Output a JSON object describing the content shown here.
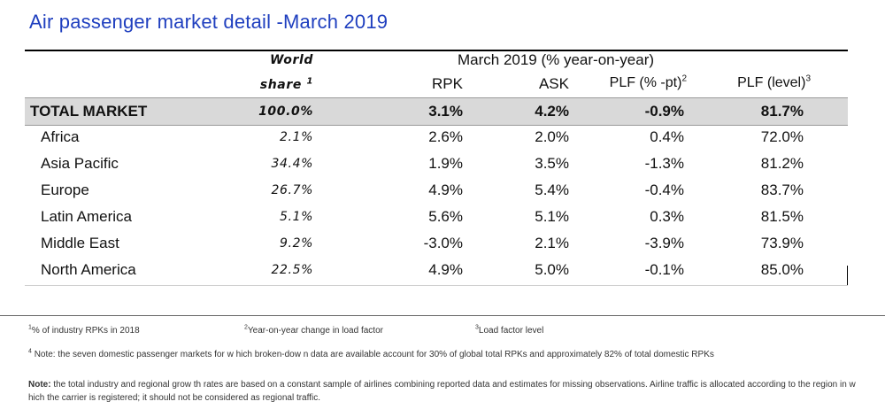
{
  "title": "Air passenger market detail -March 2019",
  "header": {
    "world": "World",
    "share": "share",
    "share_sup": "1",
    "period": "March 2019 (% year-on-year)",
    "rpk": "RPK",
    "ask": "ASK",
    "plf": "PLF (% -pt)",
    "plf_sup": "2",
    "level": "PLF (level)",
    "level_sup": "3"
  },
  "rows": [
    {
      "name": "TOTAL MARKET",
      "share": "100.0%",
      "rpk": "3.1%",
      "ask": "4.2%",
      "plf": "-0.9%",
      "level": "81.7%"
    },
    {
      "name": "Africa",
      "share": "2.1%",
      "rpk": "2.6%",
      "ask": "2.0%",
      "plf": "0.4%",
      "level": "72.0%"
    },
    {
      "name": "Asia Pacific",
      "share": "34.4%",
      "rpk": "1.9%",
      "ask": "3.5%",
      "plf": "-1.3%",
      "level": "81.2%"
    },
    {
      "name": "Europe",
      "share": "26.7%",
      "rpk": "4.9%",
      "ask": "5.4%",
      "plf": "-0.4%",
      "level": "83.7%"
    },
    {
      "name": "Latin America",
      "share": "5.1%",
      "rpk": "5.6%",
      "ask": "5.1%",
      "plf": "0.3%",
      "level": "81.5%"
    },
    {
      "name": "Middle East",
      "share": "9.2%",
      "rpk": "-3.0%",
      "ask": "2.1%",
      "plf": "-3.9%",
      "level": "73.9%"
    },
    {
      "name": "North America",
      "share": "22.5%",
      "rpk": "4.9%",
      "ask": "5.0%",
      "plf": "-0.1%",
      "level": "85.0%"
    }
  ],
  "footnotes": {
    "f1_sup": "1",
    "f1": "% of industry RPKs in 2018",
    "f2_sup": "2",
    "f2": "Year-on-year change in load factor",
    "f3_sup": "3",
    "f3": "Load factor level",
    "f4_sup": "4",
    "f4": "Note: the seven domestic passenger markets for w hich broken-dow n data are available account for 30% of global total RPKs and approximately 82% of total domestic RPKs",
    "note_label": "Note:",
    "note_text": "the total industry and regional grow th rates are based on a constant sample of airlines combining reported data and estimates for missing observations. Airline traffic is allocated according to the region in w hich the carrier is registered; it should not be considered as regional traffic."
  }
}
